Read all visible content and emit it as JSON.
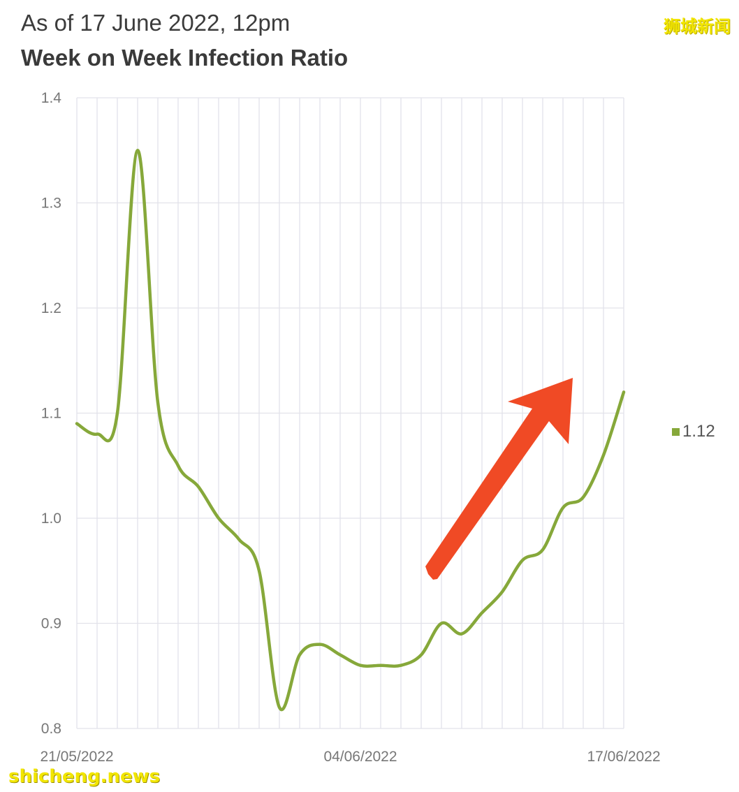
{
  "header": {
    "subtitle": "As of 17 June 2022, 12pm",
    "title": "Week on Week Infection Ratio"
  },
  "watermarks": {
    "brand": "狮城新闻",
    "site": "shicheng.news"
  },
  "colors": {
    "series": "#86a83a",
    "arrow": "#f04a25",
    "grid": "#e2e2ea",
    "watermark": "#f2e600"
  },
  "legend": {
    "label": "1.12",
    "placement": "right"
  },
  "annotation": {
    "type": "arrow",
    "direction": "up-right",
    "icon": "red-arrow-icon"
  },
  "chart_data": {
    "type": "line",
    "x_start": "21/05/2022",
    "x_end": "17/06/2022",
    "x": [
      "21/05/2022",
      "22/05/2022",
      "23/05/2022",
      "24/05/2022",
      "25/05/2022",
      "26/05/2022",
      "27/05/2022",
      "28/05/2022",
      "29/05/2022",
      "30/05/2022",
      "31/05/2022",
      "01/06/2022",
      "02/06/2022",
      "03/06/2022",
      "04/06/2022",
      "05/06/2022",
      "06/06/2022",
      "07/06/2022",
      "08/06/2022",
      "09/06/2022",
      "10/06/2022",
      "11/06/2022",
      "12/06/2022",
      "13/06/2022",
      "14/06/2022",
      "15/06/2022",
      "16/06/2022",
      "17/06/2022"
    ],
    "values": [
      1.09,
      1.08,
      1.1,
      1.35,
      1.11,
      1.05,
      1.03,
      1.0,
      0.98,
      0.95,
      0.82,
      0.87,
      0.88,
      0.87,
      0.86,
      0.86,
      0.86,
      0.87,
      0.9,
      0.89,
      0.91,
      0.93,
      0.96,
      0.97,
      1.01,
      1.02,
      1.06,
      1.12
    ],
    "x_tick_labels": [
      "21/05/2022",
      "04/06/2022",
      "17/06/2022"
    ],
    "x_tick_indices": [
      0,
      14,
      27
    ],
    "y_ticks": [
      "0.8",
      "0.9",
      "1.0",
      "1.1",
      "1.2",
      "1.3",
      "1.4"
    ],
    "ylim": [
      0.8,
      1.4
    ],
    "grid": true,
    "title": "Week on Week Infection Ratio",
    "subtitle": "As of 17 June 2022, 12pm",
    "xlabel": "",
    "ylabel": ""
  }
}
